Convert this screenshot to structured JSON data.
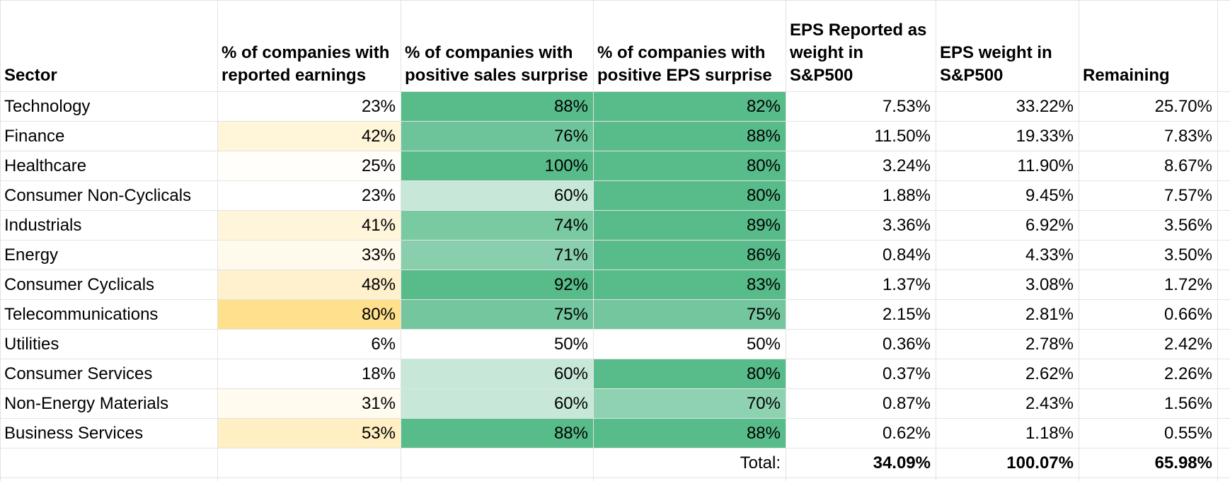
{
  "headers": [
    "Sector",
    "% of companies with reported earnings",
    "% of companies with positive sales surprise",
    "% of companies with positive EPS surprise",
    "EPS Reported as weight in S&P500",
    "EPS weight in S&P500",
    "Remaining",
    ""
  ],
  "rows": [
    {
      "sector": "Technology",
      "reported": "23%",
      "sales": "88%",
      "eps": "82%",
      "eps_reported_weight": "7.53%",
      "eps_weight": "33.22%",
      "remaining": "25.70%"
    },
    {
      "sector": "Finance",
      "reported": "42%",
      "sales": "76%",
      "eps": "88%",
      "eps_reported_weight": "11.50%",
      "eps_weight": "19.33%",
      "remaining": "7.83%"
    },
    {
      "sector": "Healthcare",
      "reported": "25%",
      "sales": "100%",
      "eps": "80%",
      "eps_reported_weight": "3.24%",
      "eps_weight": "11.90%",
      "remaining": "8.67%"
    },
    {
      "sector": "Consumer Non-Cyclicals",
      "reported": "23%",
      "sales": "60%",
      "eps": "80%",
      "eps_reported_weight": "1.88%",
      "eps_weight": "9.45%",
      "remaining": "7.57%"
    },
    {
      "sector": "Industrials",
      "reported": "41%",
      "sales": "74%",
      "eps": "89%",
      "eps_reported_weight": "3.36%",
      "eps_weight": "6.92%",
      "remaining": "3.56%"
    },
    {
      "sector": "Energy",
      "reported": "33%",
      "sales": "71%",
      "eps": "86%",
      "eps_reported_weight": "0.84%",
      "eps_weight": "4.33%",
      "remaining": "3.50%"
    },
    {
      "sector": "Consumer Cyclicals",
      "reported": "48%",
      "sales": "92%",
      "eps": "83%",
      "eps_reported_weight": "1.37%",
      "eps_weight": "3.08%",
      "remaining": "1.72%"
    },
    {
      "sector": "Telecommunications",
      "reported": "80%",
      "sales": "75%",
      "eps": "75%",
      "eps_reported_weight": "2.15%",
      "eps_weight": "2.81%",
      "remaining": "0.66%"
    },
    {
      "sector": "Utilities",
      "reported": "6%",
      "sales": "50%",
      "eps": "50%",
      "eps_reported_weight": "0.36%",
      "eps_weight": "2.78%",
      "remaining": "2.42%"
    },
    {
      "sector": "Consumer Services",
      "reported": "18%",
      "sales": "60%",
      "eps": "80%",
      "eps_reported_weight": "0.37%",
      "eps_weight": "2.62%",
      "remaining": "2.26%"
    },
    {
      "sector": "Non-Energy Materials",
      "reported": "31%",
      "sales": "60%",
      "eps": "70%",
      "eps_reported_weight": "0.87%",
      "eps_weight": "2.43%",
      "remaining": "1.56%"
    },
    {
      "sector": "Business Services",
      "reported": "53%",
      "sales": "88%",
      "eps": "88%",
      "eps_reported_weight": "0.62%",
      "eps_weight": "1.18%",
      "remaining": "0.55%"
    }
  ],
  "total": {
    "label": "Total:",
    "eps_reported_weight": "34.09%",
    "eps_weight": "100.07%",
    "remaining": "65.98%"
  },
  "colors": {
    "reported_scale": {
      "min_value": 23,
      "max_value": 80,
      "min_color": "#ffffff",
      "max_color": "#ffe08c"
    },
    "surprise_scale": {
      "min_value": 50,
      "max_value": 80,
      "min_color": "#ffffff",
      "max_color": "#57bb8a"
    },
    "gridline": "#e2e3e3"
  }
}
